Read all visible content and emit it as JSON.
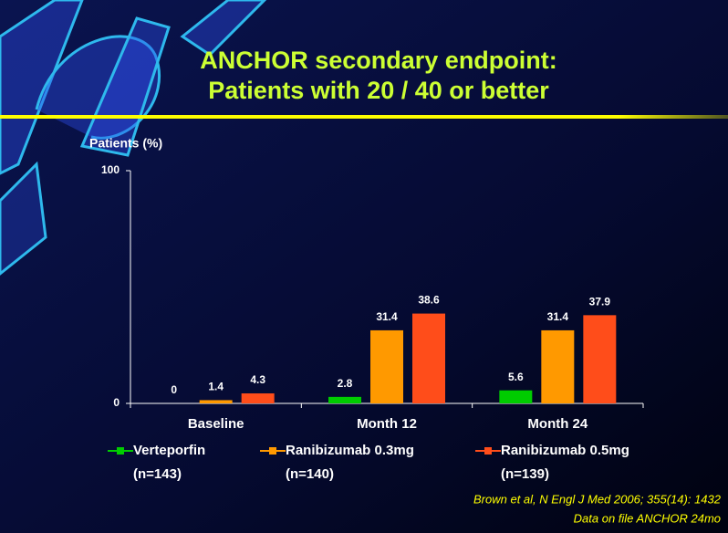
{
  "chart_data": {
    "type": "bar",
    "title": [
      "ANCHOR secondary endpoint:",
      "Patients with 20 / 40 or better"
    ],
    "y_label": "Patients (%)",
    "categories": [
      "Baseline",
      "Month 12",
      "Month 24"
    ],
    "series": [
      {
        "name": "Verteporfin",
        "note": "(n=143)",
        "color": "#00cc00",
        "values": [
          0,
          2.8,
          5.6
        ]
      },
      {
        "name": "Ranibizumab 0.3mg",
        "note": "(n=140)",
        "color": "#ff9900",
        "values": [
          1.4,
          31.4,
          31.4
        ]
      },
      {
        "name": "Ranibizumab 0.5mg",
        "note": "(n=139)",
        "color": "#ff4d1a",
        "values": [
          4.3,
          38.6,
          37.9
        ]
      }
    ],
    "ylim": [
      0,
      100
    ],
    "yticks": [
      0,
      100
    ],
    "source": [
      "Brown et al, N Engl J Med 2006; 355(14): 1432",
      "Data on file ANCHOR 24mo"
    ]
  }
}
